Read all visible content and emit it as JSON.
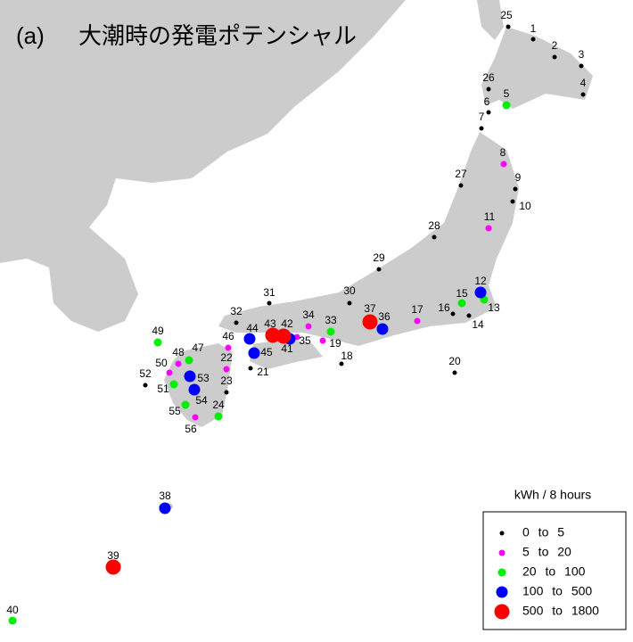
{
  "title": {
    "panel": "(a)",
    "text": "大潮時の発電ポテンシャル"
  },
  "legend": {
    "title": "kWh / 8 hours",
    "classes": [
      {
        "label": "0 to 5",
        "color": "#000000",
        "sites": [
          "25",
          "1",
          "2",
          "3",
          "4",
          "26",
          "6",
          "7",
          "9",
          "10",
          "27",
          "28",
          "29",
          "30",
          "31",
          "32",
          "16",
          "14",
          "18",
          "20",
          "21",
          "23",
          "52"
        ]
      },
      {
        "label": "5 to 20",
        "color": "#ff00ff",
        "sites": [
          "8",
          "11",
          "17",
          "34",
          "19",
          "46",
          "22",
          "48",
          "50",
          "56",
          "35"
        ]
      },
      {
        "label": "20 to 100",
        "color": "#00ee00",
        "sites": [
          "5",
          "15",
          "13",
          "33",
          "49",
          "47",
          "51",
          "55",
          "24",
          "40"
        ]
      },
      {
        "label": "100 to 500",
        "color": "#0000ff",
        "sites": [
          "12",
          "36",
          "44",
          "45",
          "41",
          "53",
          "54",
          "38"
        ]
      },
      {
        "label": "500 to 1800",
        "color": "#ff0000",
        "sites": [
          "37",
          "43",
          "42",
          "39"
        ]
      }
    ]
  }
}
